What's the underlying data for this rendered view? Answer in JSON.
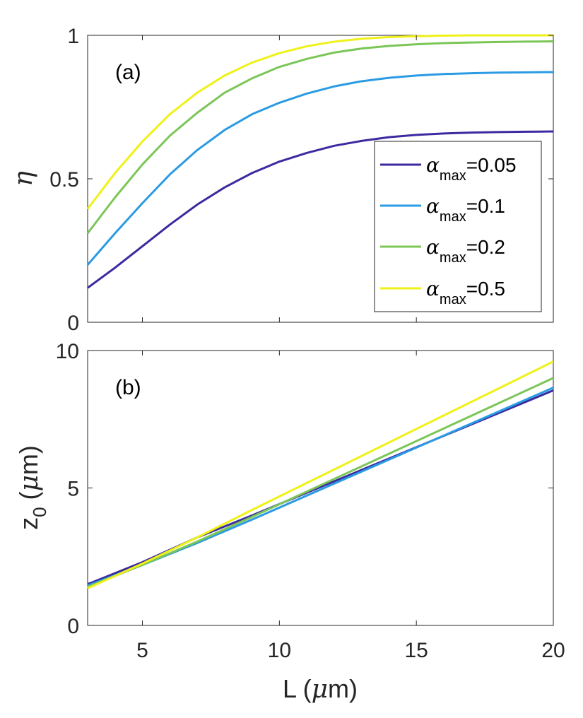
{
  "chart_data": [
    {
      "type": "line",
      "panel_label": "(a)",
      "xlabel": "",
      "ylabel_symbol": "η",
      "xlim": [
        3,
        20
      ],
      "ylim": [
        0,
        1
      ],
      "xticks": [
        5,
        10,
        15,
        20
      ],
      "yticks": [
        0,
        0.5,
        1
      ],
      "ytick_labels": [
        "0",
        "0.5",
        "1"
      ],
      "x": [
        3,
        4,
        5,
        6,
        7,
        8,
        9,
        10,
        11,
        12,
        13,
        14,
        15,
        16,
        17,
        18,
        19,
        20
      ],
      "legend_position": "right",
      "series": [
        {
          "name": "α_max=0.05",
          "symbol": "α",
          "sub": "max",
          "suffix": "=0.05",
          "color": "#3B2AA0",
          "values": [
            0.12,
            0.19,
            0.265,
            0.34,
            0.41,
            0.47,
            0.52,
            0.56,
            0.59,
            0.615,
            0.632,
            0.645,
            0.653,
            0.658,
            0.661,
            0.663,
            0.664,
            0.665
          ]
        },
        {
          "name": "α_max=0.1",
          "symbol": "α",
          "sub": "max",
          "suffix": "=0.1",
          "color": "#2B9BE3",
          "values": [
            0.2,
            0.31,
            0.415,
            0.515,
            0.6,
            0.67,
            0.725,
            0.765,
            0.797,
            0.822,
            0.84,
            0.852,
            0.86,
            0.865,
            0.868,
            0.87,
            0.871,
            0.872
          ]
        },
        {
          "name": "α_max=0.2",
          "symbol": "α",
          "sub": "max",
          "suffix": "=0.2",
          "color": "#7BC657",
          "values": [
            0.31,
            0.435,
            0.55,
            0.65,
            0.73,
            0.8,
            0.85,
            0.89,
            0.918,
            0.94,
            0.954,
            0.963,
            0.969,
            0.973,
            0.975,
            0.977,
            0.978,
            0.979
          ]
        },
        {
          "name": "α_max=0.5",
          "symbol": "α",
          "sub": "max",
          "suffix": "=0.5",
          "color": "#EFF118",
          "values": [
            0.395,
            0.52,
            0.63,
            0.725,
            0.8,
            0.86,
            0.905,
            0.938,
            0.962,
            0.978,
            0.988,
            0.994,
            0.997,
            0.999,
            1.0,
            1.0,
            1.0,
            1.0
          ]
        }
      ]
    },
    {
      "type": "line",
      "panel_label": "(b)",
      "xlabel_prefix": "L (",
      "xlabel_symbol": "μ",
      "xlabel_suffix": "m)",
      "ylabel_prefix": "z",
      "ylabel_sub": "0",
      "ylabel_mid": " (",
      "ylabel_symbol": "μ",
      "ylabel_suffix": "m)",
      "xlim": [
        3,
        20
      ],
      "ylim": [
        0,
        10
      ],
      "xticks": [
        5,
        10,
        15,
        20
      ],
      "xtick_labels": [
        "5",
        "10",
        "15",
        "20"
      ],
      "yticks": [
        0,
        5,
        10
      ],
      "ytick_labels": [
        "0",
        "5",
        "10"
      ],
      "x": [
        3,
        20
      ],
      "series": [
        {
          "name": "α_max=0.05",
          "color": "#3B2AA0",
          "x": [
            3,
            5,
            7,
            9,
            20
          ],
          "values": [
            1.5,
            2.3,
            3.2,
            4.0,
            8.55
          ]
        },
        {
          "name": "α_max=0.1",
          "color": "#2B9BE3",
          "x": [
            3,
            5,
            7,
            9,
            20
          ],
          "values": [
            1.45,
            2.2,
            3.0,
            3.85,
            8.65
          ]
        },
        {
          "name": "α_max=0.2",
          "color": "#7BC657",
          "x": [
            3,
            5,
            7,
            9,
            20
          ],
          "values": [
            1.4,
            2.2,
            3.05,
            3.95,
            9.0
          ]
        },
        {
          "name": "α_max=0.5",
          "color": "#EFF118",
          "x": [
            3,
            5,
            7,
            9,
            20
          ],
          "values": [
            1.35,
            2.25,
            3.2,
            4.2,
            9.6
          ]
        }
      ]
    }
  ]
}
